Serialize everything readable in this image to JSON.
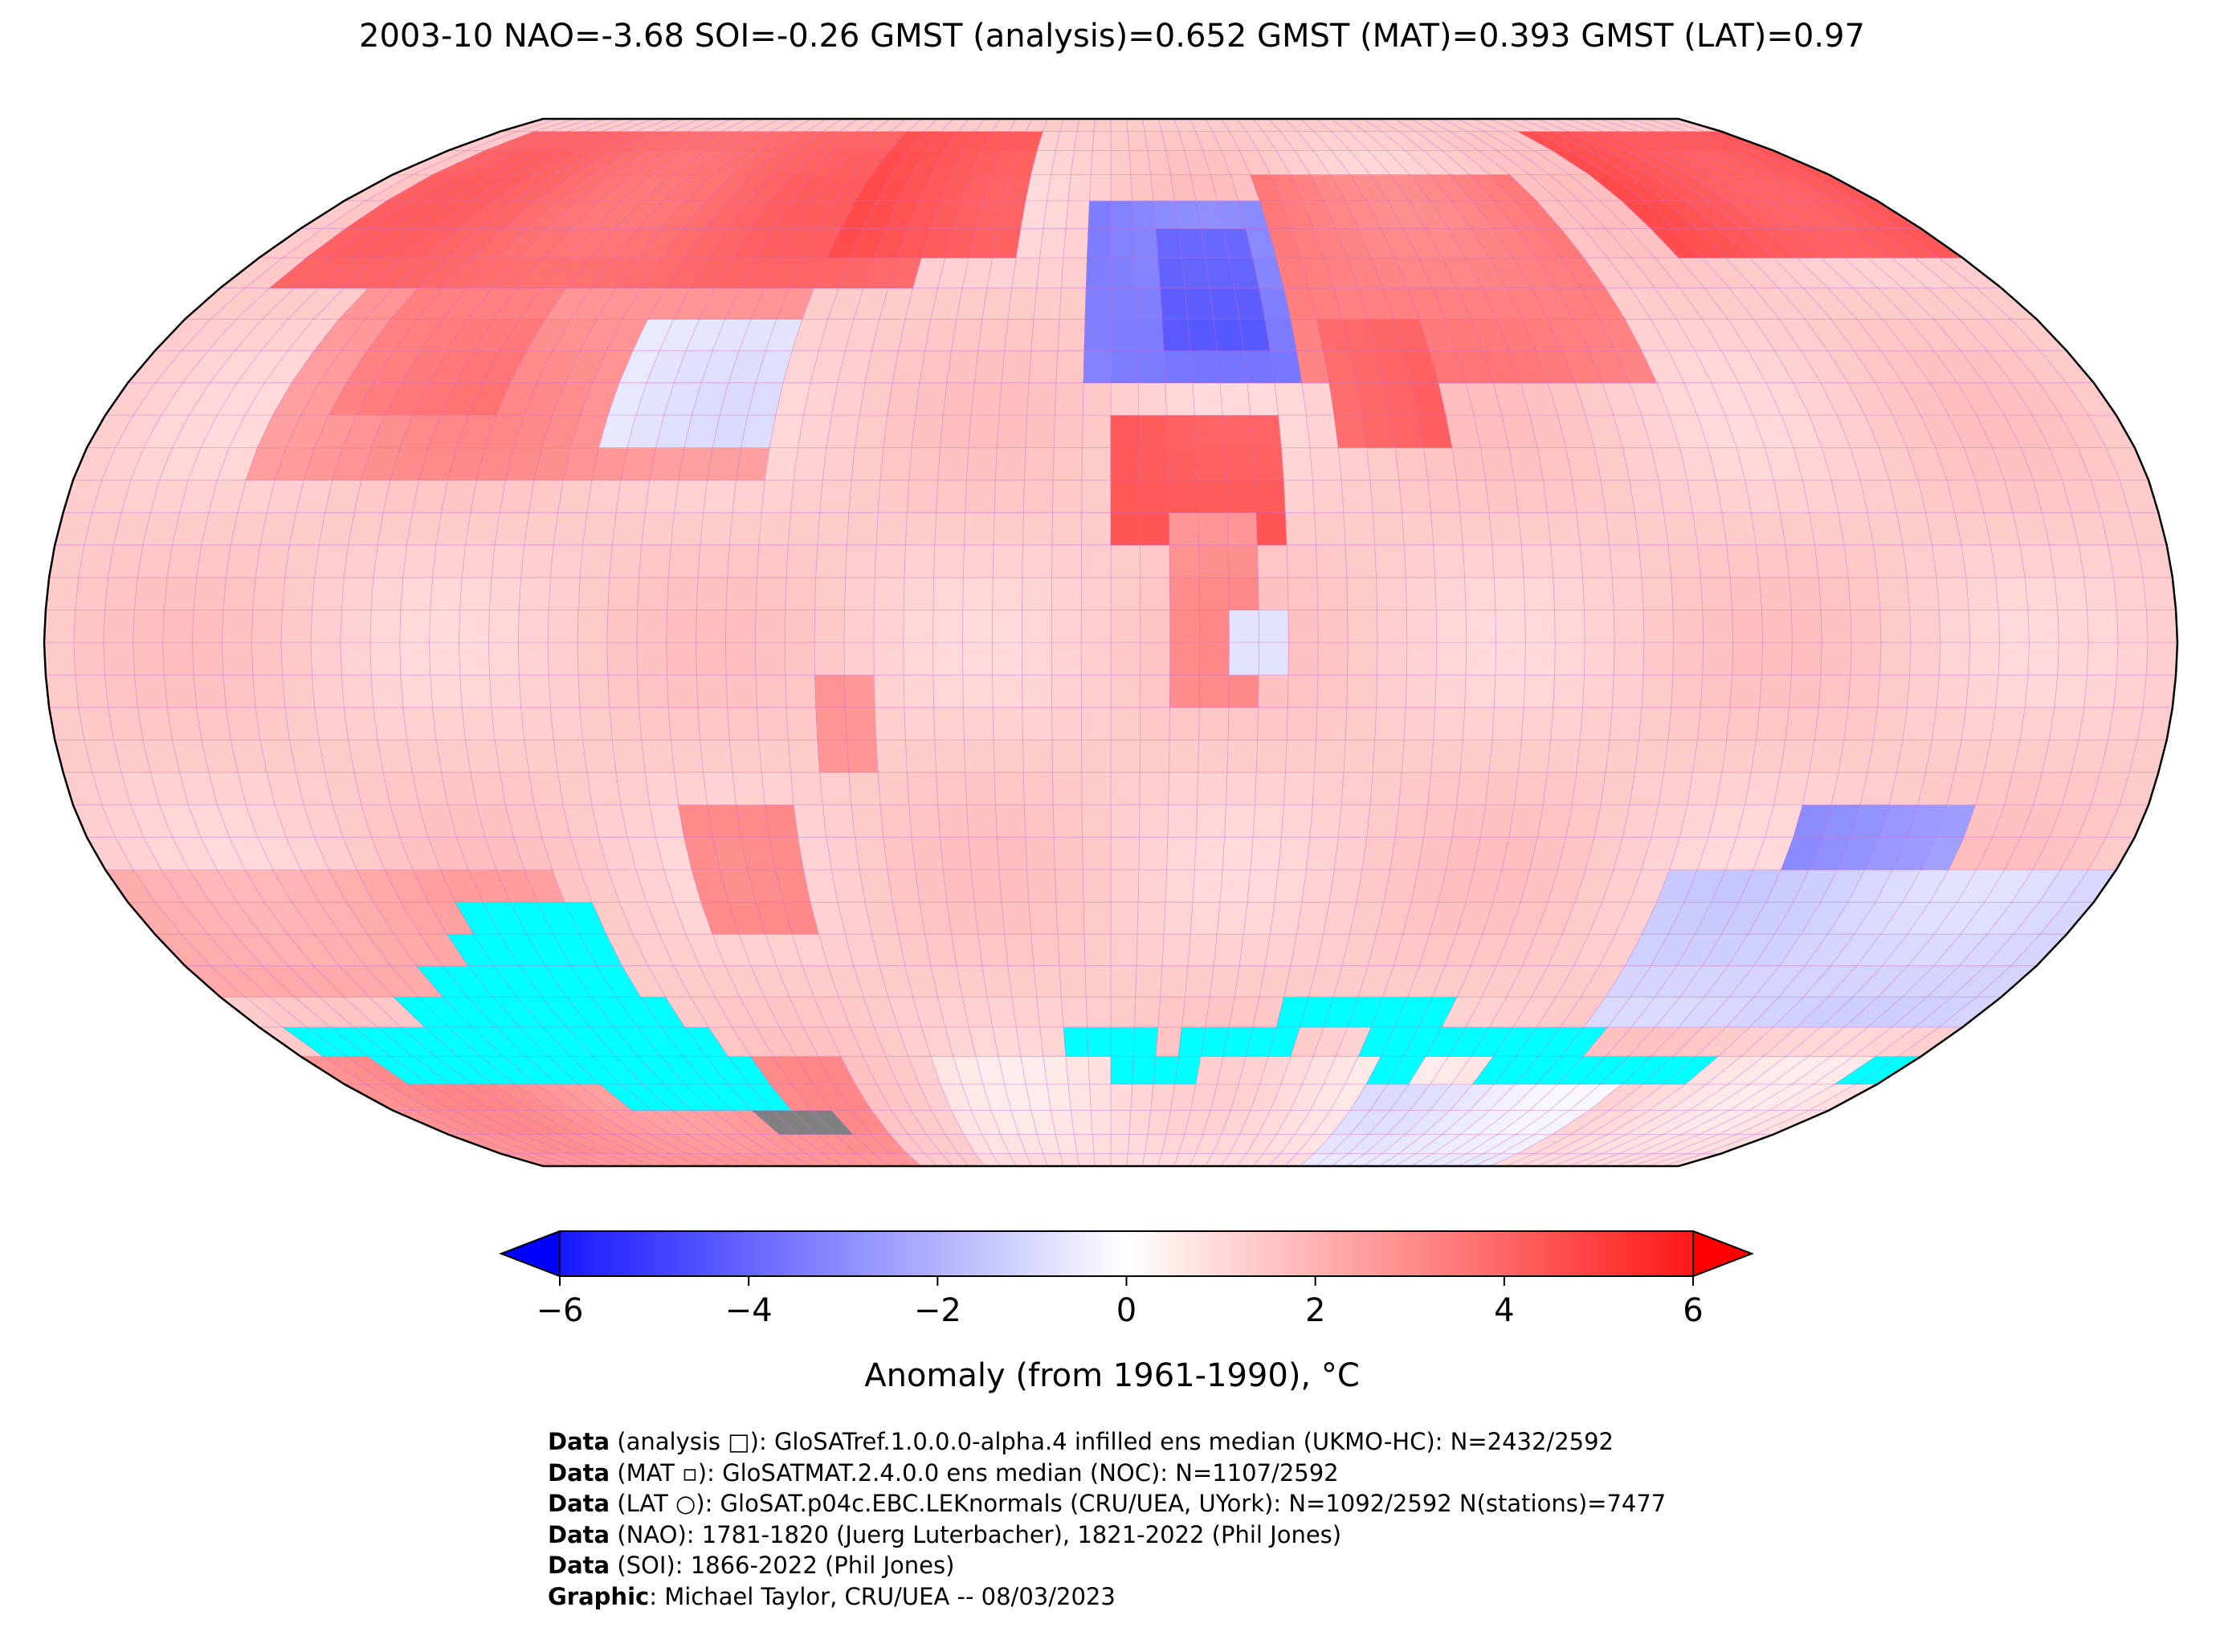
{
  "title": "2003-10 NAO=-3.68 SOI=-0.26 GMST (analysis)=0.652 GMST (MAT)=0.393 GMST (LAT)=0.97",
  "chart_data": {
    "type": "heatmap",
    "projection": "Robinson (global map, lon -180..180, lat -90..90)",
    "grid": "5x5 degree cells",
    "colorbar": {
      "vmin": -6,
      "vmax": 6,
      "extend": "both",
      "ticks": [
        -6,
        -4,
        -2,
        0,
        2,
        4,
        6
      ],
      "tick_labels": [
        "−6",
        "−4",
        "−2",
        "0",
        "2",
        "4",
        "6"
      ],
      "label": "Anomaly (from 1961-1990), °C",
      "cmap": [
        "#0000ff",
        "#ffffff",
        "#ff0000"
      ]
    },
    "regions": [
      {
        "lon": [
          -180,
          180
        ],
        "lat": [
          -90,
          90
        ],
        "value": 1.2
      },
      {
        "lon": [
          -170,
          -40
        ],
        "lat": [
          55,
          85
        ],
        "value": 3.5
      },
      {
        "lon": [
          -60,
          -20
        ],
        "lat": [
          60,
          85
        ],
        "value": 4.0
      },
      {
        "lon": [
          -150,
          -60
        ],
        "lat": [
          25,
          55
        ],
        "value": 2.5
      },
      {
        "lon": [
          -90,
          -60
        ],
        "lat": [
          30,
          50
        ],
        "value": -0.5
      },
      {
        "lon": [
          -140,
          -110
        ],
        "lat": [
          35,
          55
        ],
        "value": 3.0
      },
      {
        "lon": [
          -5,
          35
        ],
        "lat": [
          40,
          72
        ],
        "value": -3.0
      },
      {
        "lon": [
          10,
          30
        ],
        "lat": [
          45,
          65
        ],
        "value": -3.8
      },
      {
        "lon": [
          35,
          100
        ],
        "lat": [
          40,
          75
        ],
        "value": 3.0
      },
      {
        "lon": [
          40,
          60
        ],
        "lat": [
          30,
          50
        ],
        "value": 3.5
      },
      {
        "lon": [
          120,
          180
        ],
        "lat": [
          60,
          85
        ],
        "value": 4.0
      },
      {
        "lon": [
          0,
          30
        ],
        "lat": [
          15,
          35
        ],
        "value": 4.0
      },
      {
        "lon": [
          10,
          25
        ],
        "lat": [
          -10,
          20
        ],
        "value": 2.5
      },
      {
        "lon": [
          20,
          30
        ],
        "lat": [
          -5,
          5
        ],
        "value": -1.0
      },
      {
        "lon": [
          120,
          150
        ],
        "lat": [
          -40,
          -25
        ],
        "value": -2.5
      },
      {
        "lon": [
          100,
          180
        ],
        "lat": [
          -60,
          -35
        ],
        "value": -1.0
      },
      {
        "lon": [
          -75,
          -55
        ],
        "lat": [
          -45,
          -25
        ],
        "value": 3.0
      },
      {
        "lon": [
          -50,
          -40
        ],
        "lat": [
          -20,
          -5
        ],
        "value": 2.5
      },
      {
        "lon": [
          -180,
          -100
        ],
        "lat": [
          -55,
          -35
        ],
        "value": 2.0
      },
      {
        "lon": [
          -180,
          -60
        ],
        "lat": [
          -90,
          -65
        ],
        "value": 2.5
      },
      {
        "lon": [
          -40,
          180
        ],
        "lat": [
          -90,
          -65
        ],
        "value": 0.8
      },
      {
        "lon": [
          60,
          120
        ],
        "lat": [
          -90,
          -70
        ],
        "value": -0.5
      }
    ],
    "missing_cells_color": "#00ffff",
    "missing_regions": [
      {
        "lon": [
          -120,
          -95
        ],
        "lat": [
          -45,
          -40
        ]
      },
      {
        "lon": [
          -125,
          -95
        ],
        "lat": [
          -50,
          -45
        ]
      },
      {
        "lon": [
          -135,
          -95
        ],
        "lat": [
          -55,
          -50
        ]
      },
      {
        "lon": [
          -145,
          -90
        ],
        "lat": [
          -60,
          -55
        ]
      },
      {
        "lon": [
          -175,
          -85
        ],
        "lat": [
          -65,
          -60
        ]
      },
      {
        "lon": [
          -165,
          -80
        ],
        "lat": [
          -70,
          -65
        ]
      },
      {
        "lon": [
          -120,
          -80
        ],
        "lat": [
          -75,
          -70
        ]
      },
      {
        "lon": [
          -10,
          10
        ],
        "lat": [
          -65,
          -60
        ]
      },
      {
        "lon": [
          15,
          40
        ],
        "lat": [
          -65,
          -60
        ]
      },
      {
        "lon": [
          0,
          20
        ],
        "lat": [
          -70,
          -65
        ]
      },
      {
        "lon": [
          35,
          70
        ],
        "lat": [
          -60,
          -55
        ]
      },
      {
        "lon": [
          55,
          105
        ],
        "lat": [
          -65,
          -60
        ]
      },
      {
        "lon": [
          85,
          135
        ],
        "lat": [
          -70,
          -65
        ]
      },
      {
        "lon": [
          60,
          70
        ],
        "lat": [
          -70,
          -65
        ]
      },
      {
        "lon": [
          170,
          180
        ],
        "lat": [
          -70,
          -65
        ]
      }
    ],
    "no_data_color": "#808080",
    "no_data_regions": [
      {
        "lon": [
          -90,
          -70
        ],
        "lat": [
          -80,
          -75
        ]
      }
    ]
  },
  "colorbar_label": "Anomaly (from 1961-1990), °C",
  "credits": [
    {
      "bold": "Data",
      "text": " (analysis □): GloSATref.1.0.0.0-alpha.4 infilled ens median (UKMO-HC): N=2432/2592"
    },
    {
      "bold": "Data",
      "text": " (MAT ▫): GloSATMAT.2.4.0.0 ens median (NOC): N=1107/2592"
    },
    {
      "bold": "Data",
      "text": " (LAT ○): GloSAT.p04c.EBC.LEKnormals (CRU/UEA, UYork): N=1092/2592 N(stations)=7477"
    },
    {
      "bold": "Data",
      "text": " (NAO): 1781-1820 (Juerg Luterbacher), 1821-2022 (Phil Jones)"
    },
    {
      "bold": "Data",
      "text": " (SOI): 1866-2022 (Phil Jones)"
    },
    {
      "bold": "Graphic",
      "text": ": Michael Taylor, CRU/UEA -- 08/03/2023"
    }
  ]
}
